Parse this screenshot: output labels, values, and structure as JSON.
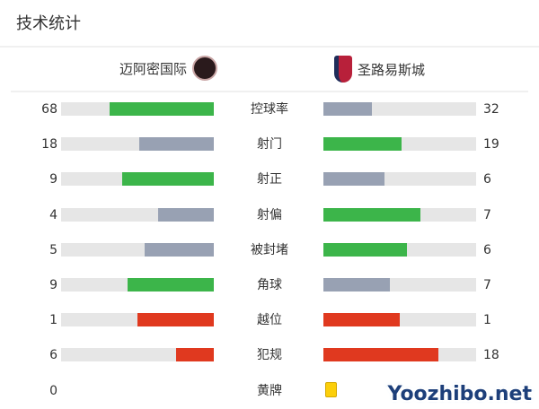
{
  "title": "技术统计",
  "home": {
    "name": "迈阿密国际"
  },
  "away": {
    "name": "圣路易斯城"
  },
  "colors": {
    "win": "#3cb54a",
    "lose": "#98a1b3",
    "foul": "#e0391f",
    "card": "#fccf0a"
  },
  "stats": [
    {
      "label": "控球率",
      "home": 68,
      "away": 32,
      "type": "compare"
    },
    {
      "label": "射门",
      "home": 18,
      "away": 19,
      "type": "compare"
    },
    {
      "label": "射正",
      "home": 9,
      "away": 6,
      "type": "compare"
    },
    {
      "label": "射偏",
      "home": 4,
      "away": 7,
      "type": "compare"
    },
    {
      "label": "被封堵",
      "home": 5,
      "away": 6,
      "type": "compare"
    },
    {
      "label": "角球",
      "home": 9,
      "away": 7,
      "type": "compare"
    },
    {
      "label": "越位",
      "home": 1,
      "away": 1,
      "type": "foul"
    },
    {
      "label": "犯规",
      "home": 6,
      "away": 18,
      "type": "foul"
    },
    {
      "label": "黄牌",
      "home": 0,
      "away": 1,
      "type": "card"
    }
  ],
  "watermark": "Yoozhibo.net"
}
